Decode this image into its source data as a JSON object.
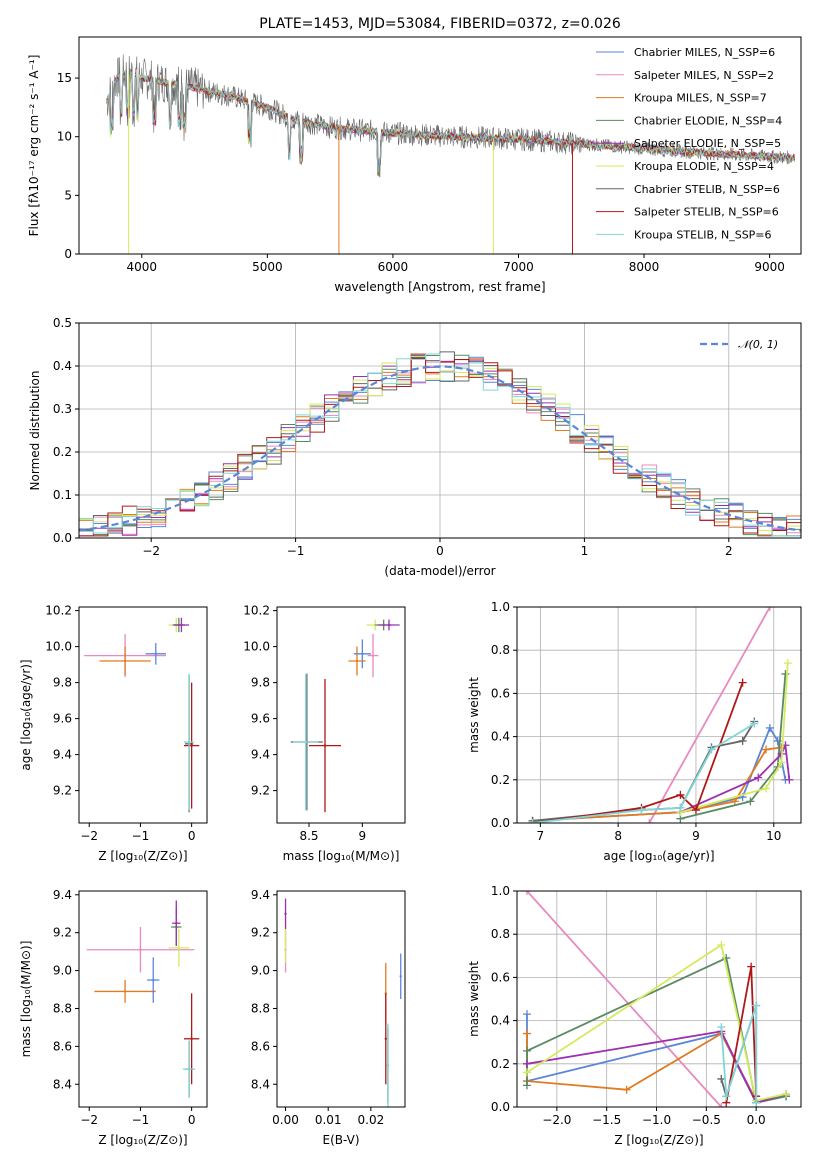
{
  "colors": {
    "chabrier_miles": "#5b86d8",
    "salpeter_miles": "#e88ac0",
    "kroupa_miles": "#e07b22",
    "chabrier_elodie": "#5a8a63",
    "salpeter_elodie": "#9b30b0",
    "kroupa_elodie": "#d5ea5c",
    "chabrier_stelib": "#666666",
    "salpeter_stelib": "#b01818",
    "kroupa_stelib": "#80d6d6",
    "normal_fit": "#5b86d8"
  },
  "chart_data": [
    {
      "id": "spectrum",
      "type": "line",
      "title": "PLATE=1453, MJD=53084, FIBERID=0372, z=0.026",
      "xlabel": "wavelength [Angstrom, rest frame]",
      "ylabel": "Flux [fλ10⁻¹⁷ erg cm⁻² s⁻¹ A⁻¹]",
      "xlim": [
        3500,
        9250
      ],
      "ylim": [
        0,
        18.5
      ],
      "xticks": [
        4000,
        5000,
        6000,
        7000,
        8000,
        9000
      ],
      "yticks": [
        0,
        5,
        10,
        15
      ],
      "grid": false,
      "legend_position": "top-right",
      "series": [
        {
          "name": "Chabrier MILES, N_SSP=6",
          "key": "chabrier_miles"
        },
        {
          "name": "Salpeter MILES, N_SSP=2",
          "key": "salpeter_miles"
        },
        {
          "name": "Kroupa MILES, N_SSP=7",
          "key": "kroupa_miles"
        },
        {
          "name": "Chabrier ELODIE, N_SSP=4",
          "key": "chabrier_elodie"
        },
        {
          "name": "Salpeter ELODIE, N_SSP=5",
          "key": "salpeter_elodie"
        },
        {
          "name": "Kroupa ELODIE, N_SSP=4",
          "key": "kroupa_elodie"
        },
        {
          "name": "Chabrier STELIB, N_SSP=6",
          "key": "chabrier_stelib"
        },
        {
          "name": "Salpeter STELIB, N_SSP=6",
          "key": "salpeter_stelib"
        },
        {
          "name": "Kroupa STELIB, N_SSP=6",
          "key": "kroupa_stelib"
        }
      ],
      "continuum": [
        [
          3720,
          13.0
        ],
        [
          3800,
          15.0
        ],
        [
          3900,
          15.5
        ],
        [
          4000,
          15.0
        ],
        [
          4200,
          14.6
        ],
        [
          4400,
          14.2
        ],
        [
          4700,
          13.5
        ],
        [
          5000,
          12.5
        ],
        [
          5200,
          11.5
        ],
        [
          5500,
          10.8
        ],
        [
          6000,
          10.3
        ],
        [
          6500,
          10.0
        ],
        [
          7000,
          9.8
        ],
        [
          7500,
          9.4
        ],
        [
          8000,
          9.0
        ],
        [
          8500,
          8.6
        ],
        [
          9000,
          8.3
        ],
        [
          9200,
          8.2
        ]
      ],
      "absorption_lines": [
        3760,
        3835,
        3890,
        3934,
        3968,
        4101,
        4227,
        4300,
        4340,
        4861,
        5175,
        5270,
        5890
      ]
    },
    {
      "id": "residuals",
      "type": "line",
      "xlabel": "(data-model)/error",
      "ylabel": "Normed distribution",
      "xlim": [
        -2.5,
        2.5
      ],
      "ylim": [
        0,
        0.5
      ],
      "xticks": [
        -2,
        -1,
        0,
        1,
        2
      ],
      "yticks": [
        0.0,
        0.1,
        0.2,
        0.3,
        0.4,
        0.5
      ],
      "grid": true,
      "legend_position": "top-right",
      "legend": "𝒩(0, 1)",
      "bin_width": 0.1
    },
    {
      "id": "age_vs_Z",
      "type": "scatter",
      "xlabel": "Z [log₁₀(Z/Z⊙)]",
      "ylabel": "age  [log₁₀(age/yr)]",
      "xlim": [
        -2.2,
        0.3
      ],
      "ylim": [
        9.02,
        10.22
      ],
      "xticks": [
        -2,
        -1,
        0
      ],
      "yticks": [
        9.2,
        9.4,
        9.6,
        9.8,
        10.0,
        10.2
      ],
      "grid": false,
      "points": [
        {
          "key": "salpeter_miles",
          "x": -1.3,
          "y": 9.95,
          "xerr": 0.8,
          "yerr": 0.12
        },
        {
          "key": "kroupa_miles",
          "x": -1.3,
          "y": 9.92,
          "xerr": 0.5,
          "yerr": 0.08
        },
        {
          "key": "chabrier_miles",
          "x": -0.7,
          "y": 9.96,
          "xerr": 0.2,
          "yerr": 0.06
        },
        {
          "key": "kroupa_elodie",
          "x": -0.3,
          "y": 10.12,
          "xerr": 0.15,
          "yerr": 0.04
        },
        {
          "key": "chabrier_elodie",
          "x": -0.25,
          "y": 10.12,
          "xerr": 0.12,
          "yerr": 0.04
        },
        {
          "key": "salpeter_elodie",
          "x": -0.2,
          "y": 10.12,
          "xerr": 0.15,
          "yerr": 0.04
        },
        {
          "key": "chabrier_stelib",
          "x": -0.05,
          "y": 9.46,
          "xerr": 0.08,
          "yerr": 0.38
        },
        {
          "key": "salpeter_stelib",
          "x": 0.0,
          "y": 9.45,
          "xerr": 0.15,
          "yerr": 0.35
        },
        {
          "key": "kroupa_stelib",
          "x": -0.05,
          "y": 9.47,
          "xerr": 0.1,
          "yerr": 0.38
        }
      ]
    },
    {
      "id": "age_vs_mass",
      "type": "scatter",
      "xlabel": "mass [log₁₀(M/M⊙)]",
      "ylabel": "",
      "xlim": [
        8.2,
        9.4
      ],
      "ylim": [
        9.02,
        10.22
      ],
      "xticks": [
        8.5,
        9.0
      ],
      "yticks": [
        9.2,
        9.4,
        9.6,
        9.8,
        10.0,
        10.2
      ],
      "grid": false,
      "points": [
        {
          "key": "salpeter_miles",
          "x": 9.1,
          "y": 9.95,
          "xerr": 0.05,
          "yerr": 0.12
        },
        {
          "key": "kroupa_miles",
          "x": 8.95,
          "y": 9.92,
          "xerr": 0.08,
          "yerr": 0.08
        },
        {
          "key": "chabrier_miles",
          "x": 9.0,
          "y": 9.96,
          "xerr": 0.08,
          "yerr": 0.08
        },
        {
          "key": "kroupa_elodie",
          "x": 9.12,
          "y": 10.12,
          "xerr": 0.08,
          "yerr": 0.03
        },
        {
          "key": "chabrier_elodie",
          "x": 9.2,
          "y": 10.12,
          "xerr": 0.08,
          "yerr": 0.03
        },
        {
          "key": "salpeter_elodie",
          "x": 9.25,
          "y": 10.12,
          "xerr": 0.1,
          "yerr": 0.03
        },
        {
          "key": "chabrier_stelib",
          "x": 8.48,
          "y": 9.47,
          "xerr": 0.15,
          "yerr": 0.38
        },
        {
          "key": "salpeter_stelib",
          "x": 8.65,
          "y": 9.45,
          "xerr": 0.15,
          "yerr": 0.37
        },
        {
          "key": "kroupa_stelib",
          "x": 8.47,
          "y": 9.47,
          "xerr": 0.12,
          "yerr": 0.38
        }
      ]
    },
    {
      "id": "mass_weight_vs_age",
      "type": "line",
      "xlabel": "age  [log₁₀(age/yr)]",
      "ylabel": "mass weight",
      "xlim": [
        6.7,
        10.35
      ],
      "ylim": [
        0,
        1.0
      ],
      "xticks": [
        7,
        8,
        9,
        10
      ],
      "yticks": [
        0.0,
        0.2,
        0.4,
        0.6,
        0.8,
        1.0
      ],
      "grid": true,
      "series": [
        {
          "key": "salpeter_miles",
          "x": [
            8.4,
            9.95
          ],
          "y": [
            0.0,
            1.0
          ]
        },
        {
          "key": "chabrier_miles",
          "x": [
            6.9,
            8.8,
            9.6,
            9.95,
            10.05,
            10.15
          ],
          "y": [
            0.01,
            0.05,
            0.12,
            0.44,
            0.38,
            0.2
          ]
        },
        {
          "key": "kroupa_miles",
          "x": [
            6.9,
            8.8,
            9.5,
            9.9,
            10.1
          ],
          "y": [
            0.01,
            0.05,
            0.1,
            0.34,
            0.35
          ]
        },
        {
          "key": "chabrier_elodie",
          "x": [
            8.8,
            9.7,
            10.05,
            10.15
          ],
          "y": [
            0.02,
            0.1,
            0.26,
            0.69
          ]
        },
        {
          "key": "salpeter_elodie",
          "x": [
            8.8,
            9.8,
            10.1,
            10.15,
            10.2
          ],
          "y": [
            0.05,
            0.21,
            0.32,
            0.36,
            0.2
          ]
        },
        {
          "key": "kroupa_elodie",
          "x": [
            8.8,
            9.9,
            10.1,
            10.18
          ],
          "y": [
            0.05,
            0.16,
            0.28,
            0.74
          ]
        },
        {
          "key": "chabrier_stelib",
          "x": [
            6.9,
            8.3,
            8.8,
            9.2,
            9.6,
            9.75
          ],
          "y": [
            0.01,
            0.06,
            0.07,
            0.35,
            0.38,
            0.47
          ]
        },
        {
          "key": "salpeter_stelib",
          "x": [
            6.9,
            8.3,
            8.8,
            9.0,
            9.6
          ],
          "y": [
            0.0,
            0.07,
            0.13,
            0.06,
            0.65
          ]
        },
        {
          "key": "kroupa_stelib",
          "x": [
            6.9,
            8.3,
            8.8,
            9.2,
            9.75
          ],
          "y": [
            0.0,
            0.06,
            0.07,
            0.34,
            0.46
          ]
        }
      ]
    },
    {
      "id": "mass_vs_Z",
      "type": "scatter",
      "xlabel": "Z [log₁₀(Z/Z⊙)]",
      "ylabel": "mass [log₁₀(M/M⊙)]",
      "xlim": [
        -2.2,
        0.3
      ],
      "ylim": [
        8.28,
        9.42
      ],
      "xticks": [
        -2,
        -1,
        0
      ],
      "yticks": [
        8.4,
        8.6,
        8.8,
        9.0,
        9.2,
        9.4
      ],
      "grid": false,
      "points": [
        {
          "key": "salpeter_miles",
          "x": -1.0,
          "y": 9.11,
          "xerr": 1.05,
          "yerr": 0.12
        },
        {
          "key": "kroupa_miles",
          "x": -1.3,
          "y": 8.89,
          "xerr": 0.6,
          "yerr": 0.06
        },
        {
          "key": "chabrier_miles",
          "x": -0.75,
          "y": 8.95,
          "xerr": 0.12,
          "yerr": 0.12
        },
        {
          "key": "kroupa_elodie",
          "x": -0.25,
          "y": 9.12,
          "xerr": 0.2,
          "yerr": 0.1
        },
        {
          "key": "chabrier_elodie",
          "x": -0.3,
          "y": 9.23,
          "xerr": 0.1,
          "yerr": 0.1
        },
        {
          "key": "salpeter_elodie",
          "x": -0.3,
          "y": 9.25,
          "xerr": 0.08,
          "yerr": 0.12
        },
        {
          "key": "chabrier_stelib",
          "x": -0.05,
          "y": 8.48,
          "xerr": 0.08,
          "yerr": 0.15
        },
        {
          "key": "salpeter_stelib",
          "x": 0.0,
          "y": 8.64,
          "xerr": 0.15,
          "yerr": 0.24
        },
        {
          "key": "kroupa_stelib",
          "x": -0.05,
          "y": 8.48,
          "xerr": 0.12,
          "yerr": 0.15
        }
      ]
    },
    {
      "id": "mass_vs_ebv",
      "type": "scatter",
      "xlabel": "E(B-V)",
      "ylabel": "",
      "xlim": [
        -0.002,
        0.028
      ],
      "ylim": [
        8.28,
        9.42
      ],
      "xticks": [
        0.0,
        0.01,
        0.02
      ],
      "xticklabels": [
        "0.00",
        "0.01",
        "0.02"
      ],
      "yticks": [
        8.4,
        8.6,
        8.8,
        9.0,
        9.2,
        9.4
      ],
      "grid": false,
      "points": [
        {
          "key": "salpeter_miles",
          "x": 0.0,
          "y": 9.11,
          "xerr": 0,
          "yerr": 0.12
        },
        {
          "key": "kroupa_elodie",
          "x": 0.0,
          "y": 9.16,
          "xerr": 0,
          "yerr": 0.12
        },
        {
          "key": "salpeter_elodie",
          "x": 0.0,
          "y": 9.3,
          "xerr": 0,
          "yerr": 0.08
        },
        {
          "key": "chabrier_miles",
          "x": 0.027,
          "y": 8.97,
          "xerr": 0,
          "yerr": 0.12
        },
        {
          "key": "kroupa_miles",
          "x": 0.0235,
          "y": 8.88,
          "xerr": 0,
          "yerr": 0.16
        },
        {
          "key": "salpeter_stelib",
          "x": 0.0235,
          "y": 8.64,
          "xerr": 0,
          "yerr": 0.24
        },
        {
          "key": "chabrier_stelib",
          "x": 0.024,
          "y": 8.5,
          "xerr": 0,
          "yerr": 0.2
        },
        {
          "key": "kroupa_stelib",
          "x": 0.024,
          "y": 8.5,
          "xerr": 0,
          "yerr": 0.22
        }
      ]
    },
    {
      "id": "mass_weight_vs_Z",
      "type": "line",
      "xlabel": "Z [log₁₀(Z/Z⊙)]",
      "ylabel": "mass weight",
      "xlim": [
        -2.4,
        0.45
      ],
      "ylim": [
        0,
        1.0
      ],
      "xticks": [
        -2.0,
        -1.5,
        -1.0,
        -0.5,
        0.0
      ],
      "xticklabels": [
        "−2.0",
        "−1.5",
        "−1.0",
        "−0.5",
        "0.0"
      ],
      "yticks": [
        0.0,
        0.2,
        0.4,
        0.6,
        0.8,
        1.0
      ],
      "grid": true,
      "series": [
        {
          "key": "salpeter_miles",
          "x": [
            -2.3,
            -0.35
          ],
          "y": [
            1.0,
            0.0
          ]
        },
        {
          "key": "chabrier_miles",
          "x": [
            -2.3,
            -2.3,
            -0.35,
            0.0,
            0.3
          ],
          "y": [
            0.43,
            0.12,
            0.34,
            0.02,
            0.05
          ]
        },
        {
          "key": "kroupa_miles",
          "x": [
            -2.3,
            -2.3,
            -1.3,
            -0.35,
            0.0
          ],
          "y": [
            0.34,
            0.12,
            0.08,
            0.34,
            0.03
          ]
        },
        {
          "key": "chabrier_elodie",
          "x": [
            -2.3,
            -2.3,
            -0.3,
            0.0,
            0.3
          ],
          "y": [
            0.1,
            0.26,
            0.69,
            0.02,
            0.05
          ]
        },
        {
          "key": "salpeter_elodie",
          "x": [
            -2.3,
            -0.35,
            0.0,
            0.3
          ],
          "y": [
            0.2,
            0.35,
            0.02,
            0.06
          ]
        },
        {
          "key": "kroupa_elodie",
          "x": [
            -2.3,
            -0.35,
            0.0,
            0.3
          ],
          "y": [
            0.16,
            0.75,
            0.03,
            0.06
          ]
        },
        {
          "key": "chabrier_stelib",
          "x": [
            -0.35,
            -0.3,
            0.0,
            0.0
          ],
          "y": [
            0.13,
            0.05,
            0.47,
            0.02
          ]
        },
        {
          "key": "salpeter_stelib",
          "x": [
            -0.3,
            -0.05,
            0.0
          ],
          "y": [
            0.02,
            0.65,
            0.05
          ]
        },
        {
          "key": "kroupa_stelib",
          "x": [
            -0.35,
            -0.3,
            0.0,
            0.0
          ],
          "y": [
            0.37,
            0.05,
            0.47,
            0.02
          ]
        }
      ]
    }
  ]
}
